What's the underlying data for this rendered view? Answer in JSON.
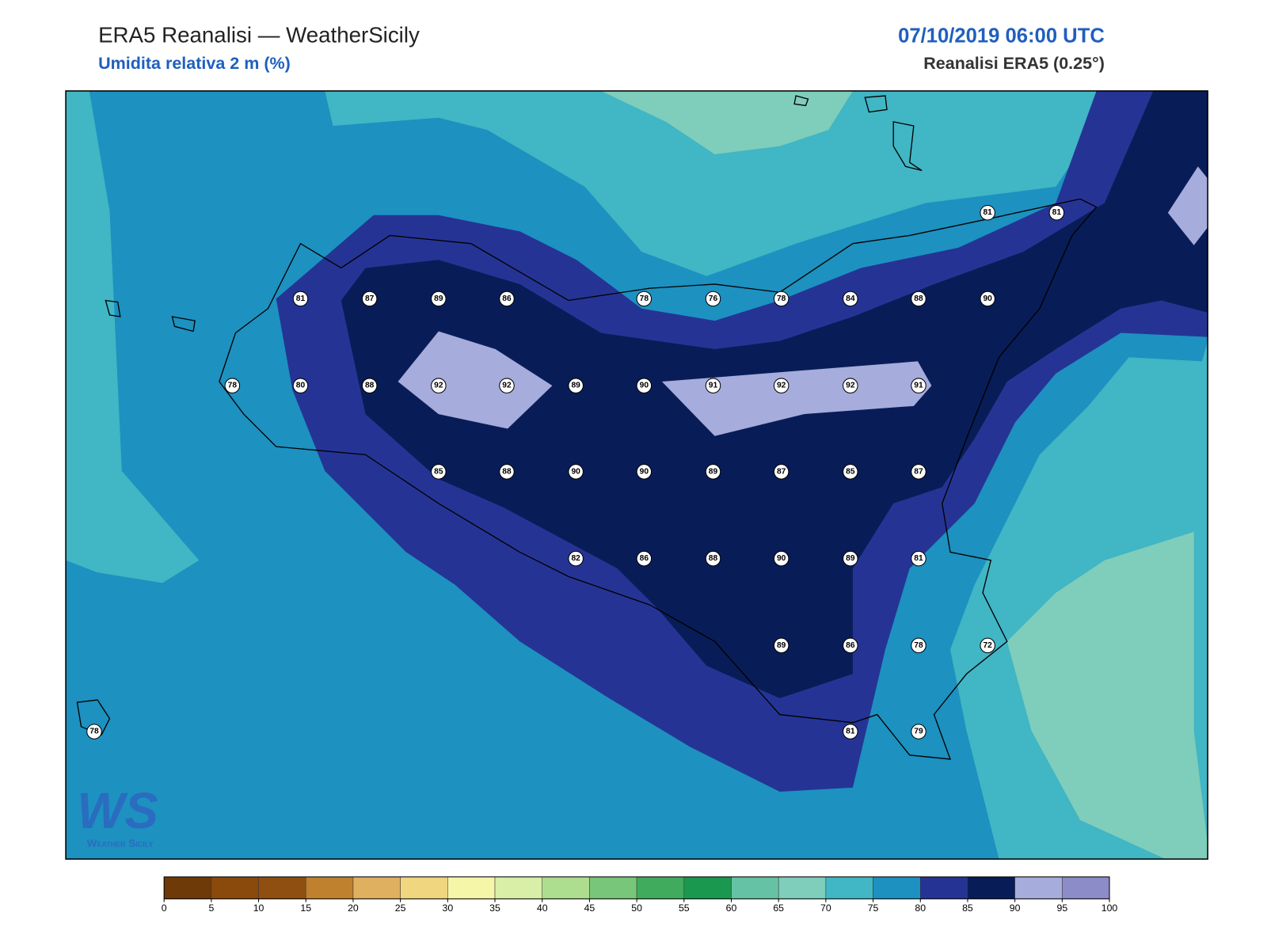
{
  "header": {
    "title": "ERA5 Reanalisi — WeatherSicily",
    "subtitle": "Umidita relativa 2 m (%)",
    "datetime": "07/10/2019 06:00 UTC",
    "source": "Reanalisi ERA5 (0.25°)"
  },
  "stations": [
    81,
    81,
    81,
    87,
    89,
    86,
    78,
    76,
    78,
    84,
    88,
    90,
    78,
    80,
    88,
    92,
    92,
    89,
    90,
    91,
    92,
    92,
    91,
    85,
    88,
    90,
    90,
    89,
    87,
    85,
    87,
    82,
    86,
    88,
    90,
    89,
    81,
    89,
    86,
    78,
    72,
    78,
    81,
    79
  ],
  "logo": {
    "mark": "WS",
    "text": "Weather Sicily"
  },
  "colorbar": {
    "ticks": [
      0,
      5,
      10,
      15,
      20,
      25,
      30,
      35,
      40,
      45,
      50,
      55,
      60,
      65,
      70,
      75,
      80,
      85,
      90,
      95,
      100
    ],
    "colors": [
      "#6e3a07",
      "#8a4a0c",
      "#8f4f10",
      "#bf812d",
      "#dfb060",
      "#f0d67f",
      "#f6f6a8",
      "#d9efa8",
      "#addd8e",
      "#78c679",
      "#41ab5d",
      "#1a9850",
      "#66c2a4",
      "#7fcdbb",
      "#41b6c4",
      "#1d91c0",
      "#253494",
      "#081d58",
      "#a6acdb",
      "#8c8cc8"
    ]
  }
}
